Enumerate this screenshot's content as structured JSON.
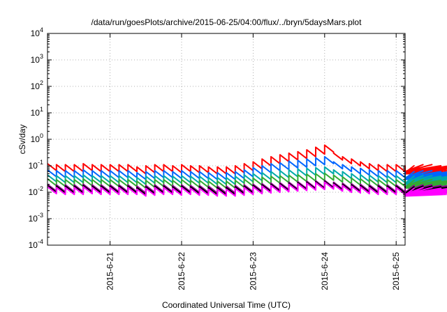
{
  "chart_data": {
    "type": "line",
    "title": "/data/run/goesPlots/archive/2015-06-25/04:00/flux/../bryn/5daysMars.plot",
    "xlabel": "Coordinated Universal Time (UTC)",
    "ylabel": "cSv/day",
    "yscale": "log",
    "ylim": [
      0.0001,
      10000
    ],
    "xlim": [
      "2015-06-20 03:00",
      "2015-06-25 03:00"
    ],
    "ytick_labels": [
      {
        "base": "10",
        "exp": "-4"
      },
      {
        "base": "10",
        "exp": "-3"
      },
      {
        "base": "10",
        "exp": "-2"
      },
      {
        "base": "10",
        "exp": "-1"
      },
      {
        "base": "10",
        "exp": "0"
      },
      {
        "base": "10",
        "exp": "1"
      },
      {
        "base": "10",
        "exp": "2"
      },
      {
        "base": "10",
        "exp": "3"
      },
      {
        "base": "10",
        "exp": "4"
      }
    ],
    "xtick_labels": [
      "2015-6-21",
      "2015-6-22",
      "2015-6-23",
      "2015-6-24",
      "2015-6-25"
    ],
    "grid": true,
    "legend": "none",
    "cycle_hours": 3,
    "series": [
      {
        "color": "#ff0000",
        "values": [
          0.12,
          0.11,
          0.11,
          0.11,
          0.12,
          0.11,
          0.11,
          0.11,
          0.11,
          0.11,
          0.09,
          0.1,
          0.11,
          0.11,
          0.1,
          0.11,
          0.1,
          0.1,
          0.09,
          0.09,
          0.09,
          0.1,
          0.12,
          0.14,
          0.18,
          0.22,
          0.26,
          0.3,
          0.34,
          0.4,
          0.5,
          0.6,
          0.3,
          0.22,
          0.18,
          0.14,
          0.12,
          0.11,
          0.11,
          0.11,
          0.1,
          0.1,
          0.11,
          0.11,
          0.1,
          0.1,
          0.1,
          0.1,
          0.1,
          0.1,
          0.1,
          0.1,
          0.1,
          0.1,
          0.09,
          0.09,
          0.1,
          0.1,
          0.1,
          0.09
        ]
      },
      {
        "color": "#0066ff",
        "values": [
          0.07,
          0.065,
          0.065,
          0.065,
          0.07,
          0.065,
          0.065,
          0.065,
          0.065,
          0.065,
          0.055,
          0.06,
          0.065,
          0.065,
          0.06,
          0.065,
          0.06,
          0.06,
          0.055,
          0.055,
          0.055,
          0.06,
          0.07,
          0.085,
          0.1,
          0.12,
          0.13,
          0.15,
          0.16,
          0.18,
          0.2,
          0.22,
          0.14,
          0.11,
          0.09,
          0.08,
          0.07,
          0.065,
          0.065,
          0.065,
          0.06,
          0.06,
          0.065,
          0.065,
          0.06,
          0.06,
          0.06,
          0.06,
          0.06,
          0.06,
          0.06,
          0.06,
          0.06,
          0.06,
          0.055,
          0.055,
          0.06,
          0.06,
          0.06,
          0.055
        ]
      },
      {
        "color": "#00aaaa",
        "values": [
          0.045,
          0.042,
          0.042,
          0.042,
          0.045,
          0.042,
          0.042,
          0.042,
          0.042,
          0.042,
          0.036,
          0.04,
          0.042,
          0.042,
          0.04,
          0.042,
          0.04,
          0.04,
          0.036,
          0.036,
          0.036,
          0.04,
          0.045,
          0.05,
          0.055,
          0.06,
          0.065,
          0.07,
          0.075,
          0.08,
          0.085,
          0.09,
          0.07,
          0.06,
          0.05,
          0.046,
          0.044,
          0.042,
          0.042,
          0.042,
          0.04,
          0.04,
          0.042,
          0.042,
          0.04,
          0.04,
          0.04,
          0.04,
          0.04,
          0.04,
          0.04,
          0.04,
          0.04,
          0.04,
          0.036,
          0.036,
          0.04,
          0.04,
          0.04,
          0.036
        ]
      },
      {
        "color": "#33aa33",
        "values": [
          0.032,
          0.03,
          0.03,
          0.03,
          0.032,
          0.03,
          0.03,
          0.03,
          0.03,
          0.03,
          0.026,
          0.028,
          0.03,
          0.03,
          0.028,
          0.03,
          0.028,
          0.028,
          0.026,
          0.026,
          0.026,
          0.028,
          0.031,
          0.034,
          0.037,
          0.04,
          0.042,
          0.044,
          0.046,
          0.048,
          0.05,
          0.052,
          0.044,
          0.038,
          0.034,
          0.032,
          0.031,
          0.03,
          0.03,
          0.03,
          0.028,
          0.028,
          0.03,
          0.03,
          0.028,
          0.028,
          0.028,
          0.028,
          0.028,
          0.028,
          0.028,
          0.028,
          0.028,
          0.028,
          0.026,
          0.026,
          0.028,
          0.028,
          0.028,
          0.026
        ]
      },
      {
        "color": "#990099",
        "values": [
          0.02,
          0.019,
          0.019,
          0.019,
          0.02,
          0.019,
          0.019,
          0.019,
          0.019,
          0.019,
          0.017,
          0.018,
          0.019,
          0.019,
          0.018,
          0.019,
          0.018,
          0.018,
          0.017,
          0.017,
          0.017,
          0.018,
          0.019,
          0.02,
          0.021,
          0.022,
          0.023,
          0.024,
          0.025,
          0.026,
          0.027,
          0.028,
          0.024,
          0.022,
          0.021,
          0.02,
          0.019,
          0.019,
          0.019,
          0.019,
          0.018,
          0.018,
          0.019,
          0.019,
          0.018,
          0.018,
          0.018,
          0.018,
          0.018,
          0.018,
          0.018,
          0.018,
          0.018,
          0.018,
          0.017,
          0.017,
          0.018,
          0.018,
          0.018,
          0.017
        ]
      },
      {
        "color": "#000000",
        "values": [
          0.018,
          0.017,
          0.017,
          0.017,
          0.018,
          0.017,
          0.017,
          0.017,
          0.017,
          0.017,
          0.015,
          0.016,
          0.017,
          0.017,
          0.016,
          0.017,
          0.016,
          0.016,
          0.015,
          0.015,
          0.015,
          0.016,
          0.017,
          0.018,
          0.019,
          0.02,
          0.021,
          0.022,
          0.023,
          0.024,
          0.025,
          0.026,
          0.022,
          0.02,
          0.019,
          0.018,
          0.017,
          0.017,
          0.017,
          0.017,
          0.016,
          0.016,
          0.017,
          0.017,
          0.016,
          0.016,
          0.016,
          0.016,
          0.016,
          0.016,
          0.016,
          0.016,
          0.016,
          0.016,
          0.015,
          0.015,
          0.016,
          0.016,
          0.016,
          0.015
        ]
      },
      {
        "color": "#ff00ff",
        "values": [
          0.016,
          0.015,
          0.015,
          0.015,
          0.016,
          0.015,
          0.015,
          0.015,
          0.015,
          0.015,
          0.013,
          0.014,
          0.015,
          0.015,
          0.014,
          0.015,
          0.014,
          0.014,
          0.013,
          0.013,
          0.013,
          0.014,
          0.015,
          0.016,
          0.017,
          0.018,
          0.019,
          0.02,
          0.021,
          0.022,
          0.023,
          0.024,
          0.02,
          0.018,
          0.017,
          0.016,
          0.015,
          0.015,
          0.015,
          0.015,
          0.014,
          0.014,
          0.015,
          0.015,
          0.014,
          0.014,
          0.014,
          0.014,
          0.014,
          0.014,
          0.014,
          0.014,
          0.014,
          0.014,
          0.013,
          0.013,
          0.014,
          0.014,
          0.014,
          0.013
        ]
      }
    ]
  }
}
